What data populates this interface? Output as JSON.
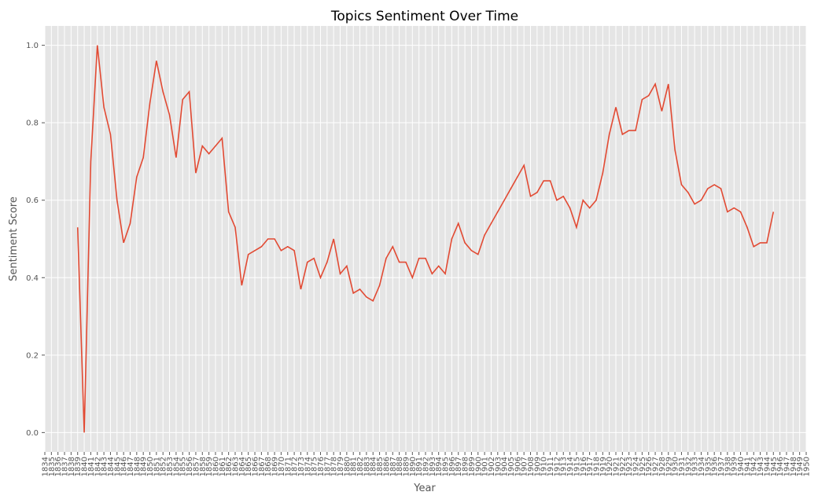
{
  "chart_data": {
    "type": "line",
    "title": "Topics Sentiment Over Time",
    "xlabel": "Year",
    "ylabel": "Sentiment Score",
    "xlim": [
      1834,
      1950
    ],
    "ylim": [
      -0.05,
      1.05
    ],
    "x_ticks": [
      1834,
      1835,
      1836,
      1837,
      1838,
      1839,
      1840,
      1841,
      1842,
      1843,
      1844,
      1845,
      1846,
      1847,
      1848,
      1849,
      1850,
      1851,
      1852,
      1853,
      1854,
      1855,
      1856,
      1857,
      1858,
      1859,
      1860,
      1861,
      1862,
      1863,
      1864,
      1865,
      1866,
      1867,
      1868,
      1869,
      1870,
      1871,
      1872,
      1873,
      1874,
      1875,
      1876,
      1877,
      1878,
      1879,
      1880,
      1881,
      1882,
      1883,
      1884,
      1885,
      1886,
      1887,
      1888,
      1889,
      1890,
      1891,
      1892,
      1893,
      1894,
      1895,
      1896,
      1897,
      1898,
      1899,
      1900,
      1901,
      1902,
      1903,
      1904,
      1905,
      1906,
      1907,
      1908,
      1909,
      1910,
      1911,
      1912,
      1913,
      1914,
      1915,
      1916,
      1917,
      1918,
      1919,
      1920,
      1921,
      1922,
      1923,
      1924,
      1925,
      1926,
      1927,
      1928,
      1929,
      1930,
      1931,
      1932,
      1933,
      1934,
      1935,
      1936,
      1937,
      1938,
      1939,
      1940,
      1941,
      1942,
      1943,
      1944,
      1945,
      1946,
      1947,
      1948,
      1949,
      1950
    ],
    "y_ticks": [
      0.0,
      0.2,
      0.4,
      0.6,
      0.8,
      1.0
    ],
    "grid": true,
    "series": [
      {
        "color": "#e24a33",
        "x": [
          1839,
          1840,
          1841,
          1842,
          1843,
          1844,
          1845,
          1846,
          1847,
          1848,
          1849,
          1850,
          1851,
          1852,
          1853,
          1854,
          1855,
          1856,
          1857,
          1858,
          1859,
          1860,
          1861,
          1862,
          1863,
          1864,
          1865,
          1866,
          1867,
          1868,
          1869,
          1870,
          1871,
          1872,
          1873,
          1874,
          1875,
          1876,
          1877,
          1878,
          1879,
          1880,
          1881,
          1882,
          1883,
          1884,
          1885,
          1886,
          1887,
          1888,
          1889,
          1890,
          1891,
          1892,
          1893,
          1894,
          1895,
          1896,
          1897,
          1898,
          1899,
          1900,
          1901,
          1902,
          1903,
          1904,
          1905,
          1906,
          1907,
          1908,
          1909,
          1910,
          1911,
          1912,
          1913,
          1914,
          1915,
          1916,
          1917,
          1918,
          1919,
          1920,
          1921,
          1922,
          1923,
          1924,
          1925,
          1926,
          1927,
          1928,
          1929,
          1930,
          1931,
          1932,
          1933,
          1934,
          1935,
          1936,
          1937,
          1938,
          1939,
          1940,
          1941,
          1942,
          1943,
          1944,
          1945
        ],
        "y": [
          0.53,
          0.0,
          0.7,
          1.0,
          0.84,
          0.77,
          0.6,
          0.49,
          0.54,
          0.66,
          0.71,
          0.85,
          0.96,
          0.88,
          0.82,
          0.71,
          0.86,
          0.88,
          0.67,
          0.74,
          0.72,
          0.74,
          0.76,
          0.57,
          0.53,
          0.38,
          0.46,
          0.47,
          0.48,
          0.5,
          0.5,
          0.47,
          0.48,
          0.47,
          0.37,
          0.44,
          0.45,
          0.4,
          0.44,
          0.5,
          0.41,
          0.43,
          0.36,
          0.37,
          0.35,
          0.34,
          0.38,
          0.45,
          0.48,
          0.44,
          0.44,
          0.4,
          0.45,
          0.45,
          0.41,
          0.43,
          0.41,
          0.5,
          0.54,
          0.49,
          0.47,
          0.46,
          0.51,
          0.54,
          0.57,
          0.6,
          0.63,
          0.66,
          0.69,
          0.61,
          0.62,
          0.65,
          0.65,
          0.6,
          0.61,
          0.58,
          0.53,
          0.6,
          0.58,
          0.6,
          0.67,
          0.77,
          0.84,
          0.77,
          0.78,
          0.78,
          0.86,
          0.87,
          0.9,
          0.83,
          0.9,
          0.73,
          0.64,
          0.62,
          0.59,
          0.6,
          0.63,
          0.64,
          0.63,
          0.57,
          0.58,
          0.57,
          0.53,
          0.48,
          0.49,
          0.49,
          0.57
        ]
      }
    ]
  }
}
